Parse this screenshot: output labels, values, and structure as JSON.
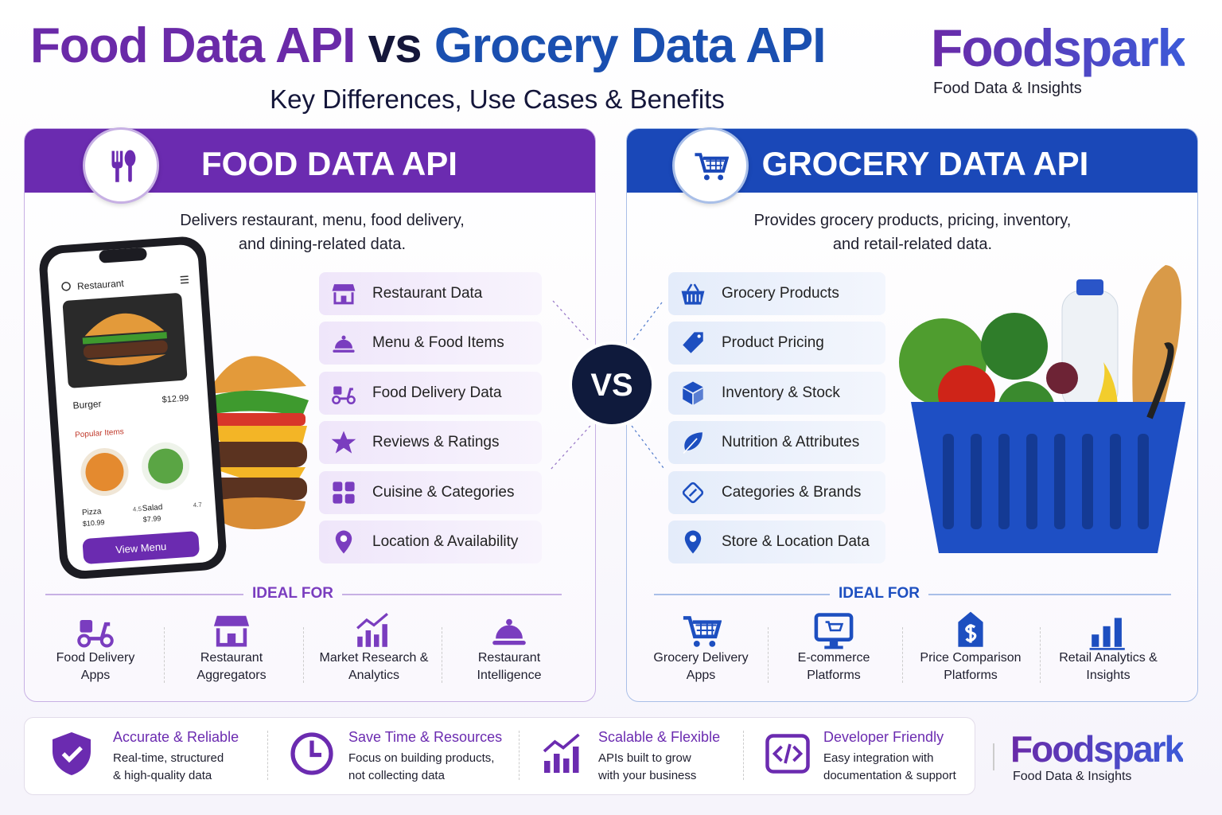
{
  "header": {
    "title_food": "Food Data API",
    "title_vs": "vs",
    "title_grocery": "Grocery Data API",
    "subtitle": "Key Differences, Use Cases & Benefits"
  },
  "brand": {
    "name": "Foodspark",
    "tagline": "Food Data & Insights"
  },
  "vs_badge": "VS",
  "panels": [
    {
      "title": "FOOD DATA API",
      "description": [
        "Delivers restaurant, menu, food delivery,",
        "and dining-related data."
      ],
      "features": [
        "Restaurant Data",
        "Menu & Food Items",
        "Food Delivery Data",
        "Reviews & Ratings",
        "Cuisine & Categories",
        "Location & Availability"
      ],
      "ideal_for_heading": "IDEAL FOR",
      "ideal_for": [
        [
          "Food Delivery",
          "Apps"
        ],
        [
          "Restaurant",
          "Aggregators"
        ],
        [
          "Market Research &",
          "Analytics"
        ],
        [
          "Restaurant",
          "Intelligence"
        ]
      ]
    },
    {
      "title": "GROCERY DATA API",
      "description": [
        "Provides grocery products, pricing, inventory,",
        "and retail-related data."
      ],
      "features": [
        "Grocery Products",
        "Product Pricing",
        "Inventory & Stock",
        "Nutrition & Attributes",
        "Categories & Brands",
        "Store & Location Data"
      ],
      "ideal_for_heading": "IDEAL FOR",
      "ideal_for": [
        [
          "Grocery Delivery",
          "Apps"
        ],
        [
          "E-commerce",
          "Platforms"
        ],
        [
          "Price Comparison",
          "Platforms"
        ],
        [
          "Retail Analytics &",
          "Insights"
        ]
      ]
    }
  ],
  "phone": {
    "header": "Restaurant",
    "item": "Burger",
    "price": "$12.99",
    "section": "Popular Items",
    "items": [
      {
        "name": "Pizza",
        "price": "$10.99",
        "rating": 4.5
      },
      {
        "name": "Salad",
        "price": "$7.99",
        "rating": 4.7
      }
    ],
    "button": "View Menu"
  },
  "benefits": [
    {
      "title": "Accurate & Reliable",
      "text": [
        "Real-time, structured",
        "& high-quality data"
      ]
    },
    {
      "title": "Save Time & Resources",
      "text": [
        "Focus on building products,",
        "not collecting data"
      ]
    },
    {
      "title": "Scalable & Flexible",
      "text": [
        "APIs built to grow",
        "with your business"
      ]
    },
    {
      "title": "Developer Friendly",
      "text": [
        "Easy integration with",
        "documentation & support"
      ]
    }
  ]
}
